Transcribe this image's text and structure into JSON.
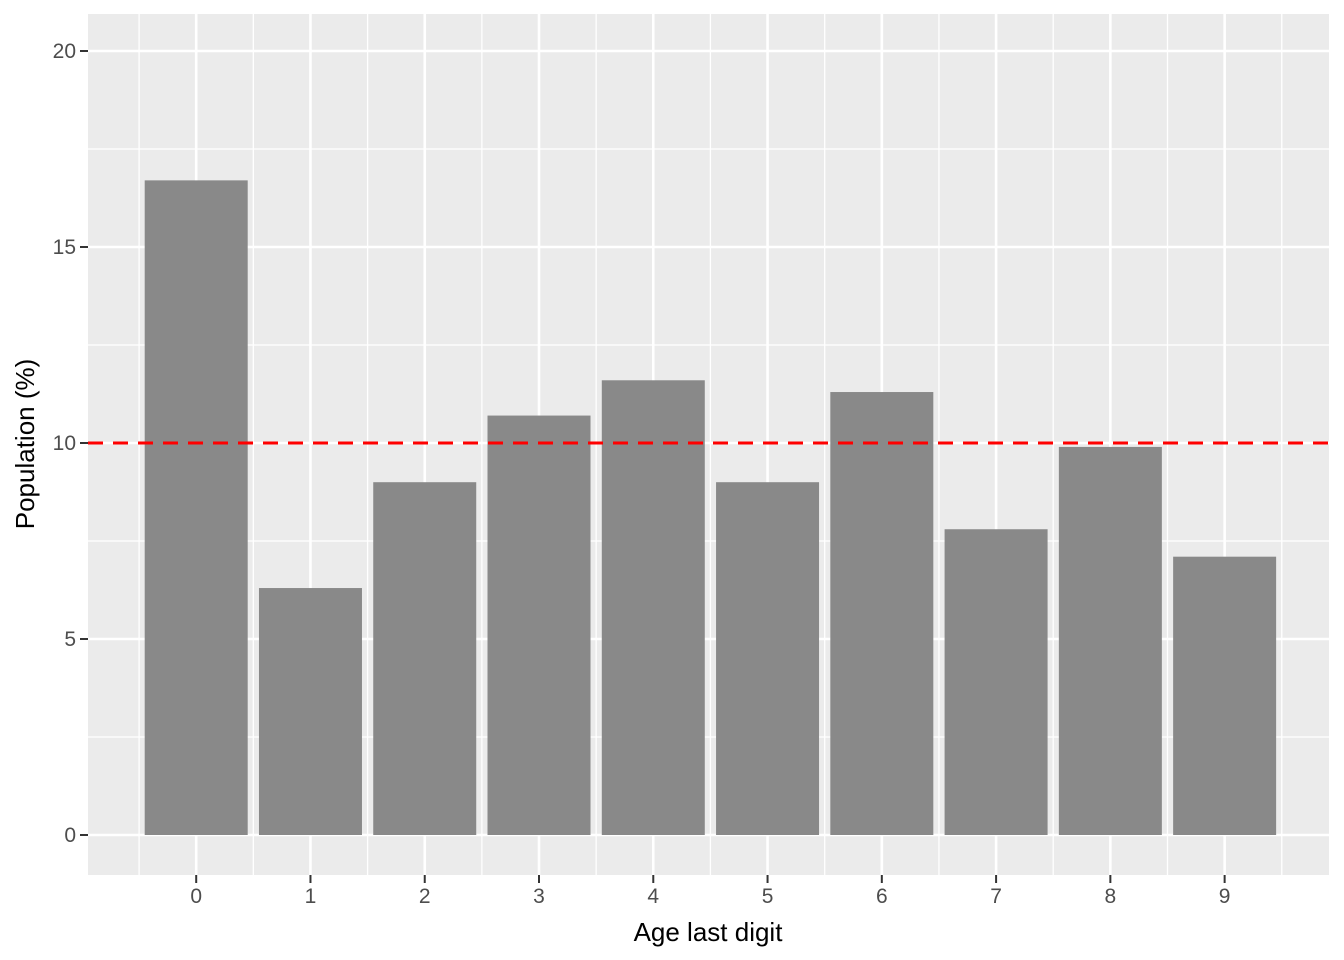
{
  "chart_data": {
    "type": "bar",
    "title": "",
    "xlabel": "Age last digit",
    "ylabel": "Population (%)",
    "categories": [
      "0",
      "1",
      "2",
      "3",
      "4",
      "5",
      "6",
      "7",
      "8",
      "9"
    ],
    "values": [
      16.7,
      6.3,
      9.0,
      10.7,
      11.6,
      9.0,
      11.3,
      7.8,
      9.9,
      7.1
    ],
    "yticks": [
      0,
      5,
      10,
      15,
      20
    ],
    "ytick_labels": [
      "0",
      "5",
      "10",
      "15",
      "20"
    ],
    "ylim": [
      -1.0,
      21.0
    ],
    "grid": "on",
    "legend_position": "none",
    "reference_line": {
      "y": 10,
      "style": "dashed",
      "color": "#FF0000"
    },
    "colors": {
      "bar_fill": "#898989",
      "panel_background": "#EBEBEB",
      "grid_major": "#FFFFFF",
      "grid_minor": "#FFFFFF",
      "tick_mark": "#333333",
      "tick_label": "#4D4D4D",
      "axis_title": "#000000",
      "figure_background": "#FFFFFF"
    }
  }
}
